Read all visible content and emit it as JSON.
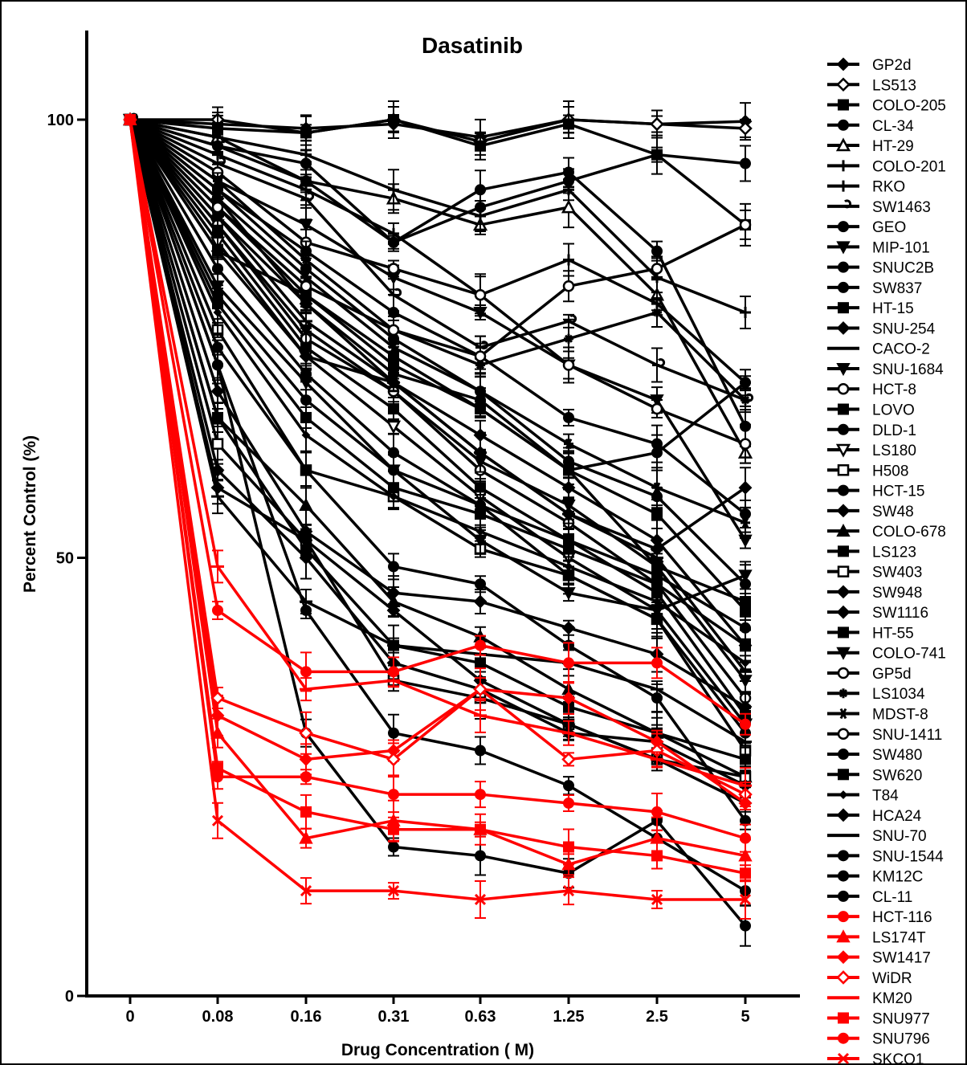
{
  "chart_data": {
    "type": "line",
    "title": "Dasatinib",
    "xlabel": "Drug Concentration (  M)",
    "ylabel": "Percent Control (%)",
    "x_categories": [
      "0",
      "0.08",
      "0.16",
      "0.31",
      "0.63",
      "1.25",
      "2.5",
      "5"
    ],
    "y_ticks": [
      "0",
      "50",
      "100"
    ],
    "ylim": [
      0,
      110
    ],
    "error_bars": true,
    "legend_position": "right",
    "colors": {
      "resistant": "#000000",
      "sensitive": "#ff0000"
    },
    "series": [
      {
        "name": "GP2d",
        "marker": "diamond",
        "color": "#000000",
        "values": [
          100,
          99.5,
          99,
          99.5,
          98,
          100,
          99.5,
          99.8
        ]
      },
      {
        "name": "LS513",
        "marker": "diamond-open",
        "color": "#000000",
        "values": [
          100,
          100,
          98.5,
          100,
          97.5,
          100,
          99.5,
          99
        ]
      },
      {
        "name": "COLO-205",
        "marker": "square",
        "color": "#000000",
        "values": [
          100,
          99,
          98.5,
          100,
          97,
          99.5,
          96,
          88
        ]
      },
      {
        "name": "CL-34",
        "marker": "circle",
        "color": "#000000",
        "values": [
          100,
          97,
          95,
          86,
          92,
          94,
          85,
          65
        ]
      },
      {
        "name": "HT-29",
        "marker": "triangle-open",
        "color": "#000000",
        "values": [
          100,
          98,
          93,
          91,
          88,
          90,
          80,
          62
        ]
      },
      {
        "name": "COLO-201",
        "marker": "plus",
        "color": "#000000",
        "values": [
          100,
          98,
          96,
          92,
          89,
          92,
          82,
          78
        ]
      },
      {
        "name": "RKO",
        "marker": "plus",
        "color": "#000000",
        "values": [
          100,
          96,
          92,
          87,
          80,
          84,
          79,
          70
        ]
      },
      {
        "name": "SW1463",
        "marker": "hook",
        "color": "#000000",
        "values": [
          100,
          95,
          91,
          80,
          74,
          77,
          72,
          68
        ]
      },
      {
        "name": "GEO",
        "marker": "circle",
        "color": "#000000",
        "values": [
          100,
          97,
          93,
          86,
          90,
          93,
          96,
          95
        ]
      },
      {
        "name": "MIP-101",
        "marker": "triangle-down",
        "color": "#000000",
        "values": [
          100,
          93,
          88,
          82,
          78,
          72,
          68,
          52
        ]
      },
      {
        "name": "SNUC2B",
        "marker": "circle",
        "color": "#000000",
        "values": [
          100,
          92,
          85,
          78,
          73,
          66,
          63,
          55
        ]
      },
      {
        "name": "SW837",
        "marker": "circle",
        "color": "#000000",
        "values": [
          100,
          92,
          83,
          75,
          69,
          61,
          57,
          47
        ]
      },
      {
        "name": "HT-15",
        "marker": "square",
        "color": "#000000",
        "values": [
          100,
          90,
          80,
          72,
          67,
          60,
          55,
          44
        ]
      },
      {
        "name": "SNU-254",
        "marker": "diamond",
        "color": "#000000",
        "values": [
          100,
          91,
          79,
          70,
          64,
          58,
          52,
          40
        ]
      },
      {
        "name": "CACO-2",
        "marker": "dash",
        "color": "#000000",
        "values": [
          100,
          89,
          77,
          70,
          62,
          55,
          50,
          37
        ]
      },
      {
        "name": "SNU-1684",
        "marker": "triangle-down",
        "color": "#000000",
        "values": [
          100,
          88,
          76,
          69,
          61,
          56,
          49,
          36
        ]
      },
      {
        "name": "HCT-8",
        "marker": "circle-open",
        "color": "#000000",
        "values": [
          100,
          88,
          75,
          69,
          60,
          54,
          47,
          34
        ]
      },
      {
        "name": "LOVO",
        "marker": "square",
        "color": "#000000",
        "values": [
          100,
          87,
          74,
          67,
          58,
          52,
          46,
          32
        ]
      },
      {
        "name": "DLD-1",
        "marker": "circle",
        "color": "#000000",
        "values": [
          100,
          89,
          79,
          71,
          68,
          60,
          62,
          70
        ]
      },
      {
        "name": "LS180",
        "marker": "triangle-open-down",
        "color": "#000000",
        "values": [
          100,
          86,
          73,
          65,
          57,
          50,
          44,
          31
        ]
      },
      {
        "name": "H508",
        "marker": "square-open",
        "color": "#000000",
        "values": [
          100,
          76,
          60,
          57,
          51,
          48,
          43,
          28
        ]
      },
      {
        "name": "HCT-15",
        "marker": "circle",
        "color": "#000000",
        "values": [
          100,
          83,
          71,
          62,
          56,
          48,
          43,
          30
        ]
      },
      {
        "name": "SW48",
        "marker": "diamond",
        "color": "#000000",
        "values": [
          100,
          85,
          73,
          70,
          62,
          55,
          51,
          58
        ]
      },
      {
        "name": "COLO-678",
        "marker": "triangle",
        "color": "#000000",
        "values": [
          100,
          66,
          56,
          45,
          41,
          35,
          30,
          25
        ]
      },
      {
        "name": "LS123",
        "marker": "square",
        "color": "#000000",
        "values": [
          100,
          66,
          51,
          40,
          38,
          33,
          30,
          27
        ]
      },
      {
        "name": "SW403",
        "marker": "square-open",
        "color": "#000000",
        "values": [
          100,
          63,
          52,
          36,
          34,
          31,
          27,
          25
        ]
      },
      {
        "name": "SW948",
        "marker": "diamond",
        "color": "#000000",
        "values": [
          100,
          60,
          50,
          38,
          35,
          30,
          29,
          24
        ]
      },
      {
        "name": "SW1116",
        "marker": "diamond",
        "color": "#000000",
        "values": [
          100,
          58,
          52,
          44,
          36,
          31,
          27,
          22
        ]
      },
      {
        "name": "HT-55",
        "marker": "square",
        "color": "#000000",
        "values": [
          100,
          85,
          80,
          73,
          67,
          60,
          49,
          45
        ]
      },
      {
        "name": "COLO-741",
        "marker": "triangle-down",
        "color": "#000000",
        "values": [
          100,
          81,
          70,
          60,
          52,
          46,
          44,
          48
        ]
      },
      {
        "name": "GP5d",
        "marker": "circle-open",
        "color": "#000000",
        "values": [
          100,
          94,
          86,
          83,
          80,
          72,
          67,
          63
        ]
      },
      {
        "name": "LS1034",
        "marker": "asterisk",
        "color": "#000000",
        "values": [
          100,
          93,
          84,
          76,
          72,
          75,
          78,
          68
        ]
      },
      {
        "name": "MDST-8",
        "marker": "star",
        "color": "#000000",
        "values": [
          100,
          91,
          82,
          74,
          69,
          63,
          58,
          54
        ]
      },
      {
        "name": "SNU-1411",
        "marker": "circle-open",
        "color": "#000000",
        "values": [
          100,
          90,
          81,
          76,
          73,
          81,
          83,
          88
        ]
      },
      {
        "name": "SW480",
        "marker": "circle",
        "color": "#000000",
        "values": [
          100,
          80,
          68,
          60,
          56,
          52,
          48,
          42
        ]
      },
      {
        "name": "SW620",
        "marker": "square",
        "color": "#000000",
        "values": [
          100,
          79,
          66,
          58,
          55,
          51,
          47,
          40
        ]
      },
      {
        "name": "T84",
        "marker": "diamond-small",
        "color": "#000000",
        "values": [
          100,
          78,
          64,
          57,
          53,
          49,
          45,
          38
        ]
      },
      {
        "name": "HCA24",
        "marker": "diamond",
        "color": "#000000",
        "values": [
          100,
          69,
          53,
          46,
          45,
          42,
          39,
          33
        ]
      },
      {
        "name": "SNU-70",
        "marker": "dash",
        "color": "#000000",
        "values": [
          100,
          57,
          45,
          40,
          39,
          38,
          35,
          29
        ]
      },
      {
        "name": "SNU-1544",
        "marker": "circle",
        "color": "#000000",
        "values": [
          100,
          74,
          60,
          49,
          47,
          40,
          34,
          20
        ]
      },
      {
        "name": "KM12C",
        "marker": "circle",
        "color": "#000000",
        "values": [
          100,
          72,
          44,
          30,
          28,
          24,
          18,
          12
        ]
      },
      {
        "name": "CL-11",
        "marker": "circle",
        "color": "#000000",
        "values": [
          100,
          72,
          30,
          17,
          16,
          14,
          20,
          8
        ]
      },
      {
        "name": "HCT-116",
        "marker": "circle",
        "color": "#ff0000",
        "values": [
          100,
          44,
          37,
          37,
          40,
          38,
          38,
          31
        ]
      },
      {
        "name": "LS174T",
        "marker": "triangle",
        "color": "#ff0000",
        "values": [
          100,
          30,
          18,
          20,
          19,
          15,
          18,
          16
        ]
      },
      {
        "name": "SW1417",
        "marker": "diamond",
        "color": "#ff0000",
        "values": [
          100,
          32,
          27,
          28,
          35,
          34,
          29,
          22
        ]
      },
      {
        "name": "WiDR",
        "marker": "diamond-open",
        "color": "#ff0000",
        "values": [
          100,
          34,
          30,
          27,
          35,
          27,
          28,
          23
        ]
      },
      {
        "name": "KM20",
        "marker": "dash",
        "color": "#ff0000",
        "values": [
          100,
          49,
          35,
          36,
          32,
          30,
          27,
          24
        ]
      },
      {
        "name": "SNU977",
        "marker": "square",
        "color": "#ff0000",
        "values": [
          100,
          26,
          21,
          19,
          19,
          17,
          16,
          14
        ]
      },
      {
        "name": "SNU796",
        "marker": "circle",
        "color": "#ff0000",
        "values": [
          100,
          25,
          25,
          23,
          23,
          22,
          21,
          18
        ]
      },
      {
        "name": "SKCO1",
        "marker": "x",
        "color": "#ff0000",
        "values": [
          100,
          20,
          12,
          12,
          11,
          12,
          11,
          11
        ]
      }
    ]
  }
}
